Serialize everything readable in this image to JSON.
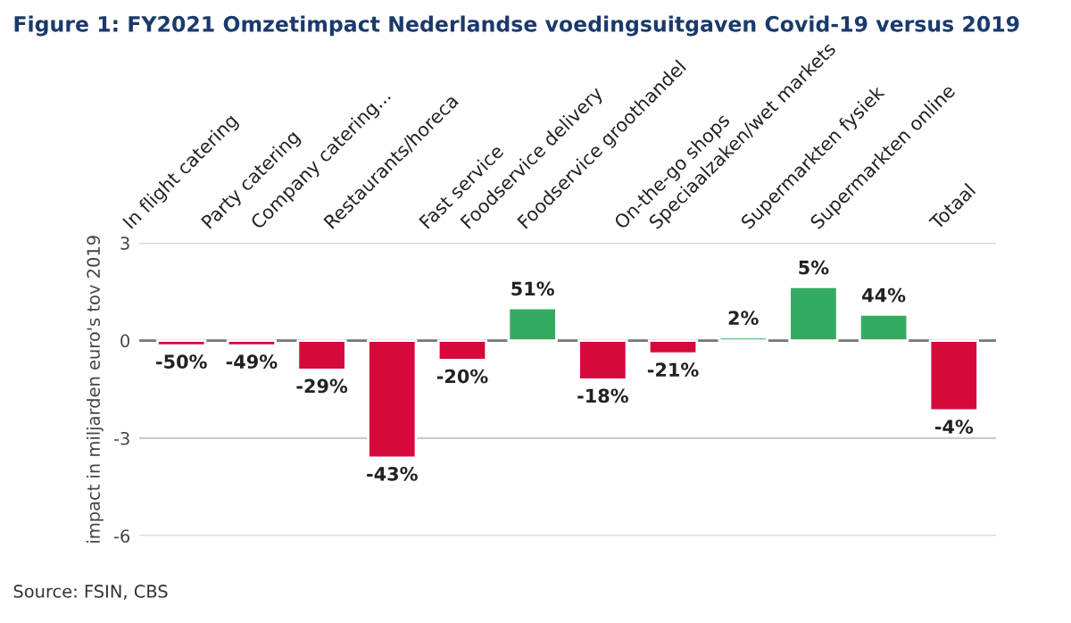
{
  "chart_data": {
    "type": "bar",
    "title": "Figure 1: FY2021 Omzetimpact Nederlandse voedingsuitgaven Covid-19 versus 2019",
    "ylabel": "impact in miljarden euro's tov 2019",
    "annotations": [
      "Source: FSIN, CBS",
      {
        "text": "-50%",
        "x": "In flight catering",
        "y": -0.15
      },
      {
        "text": "-49%",
        "x": "Party catering",
        "y": -0.15
      },
      {
        "text": "-29%",
        "x": "Company catering...",
        "y": -0.9
      },
      {
        "text": "-43%",
        "x": "Restaurants/horeca",
        "y": -3.6
      },
      {
        "text": "-20%",
        "x": "Fast service",
        "y": -0.6
      },
      {
        "text": "51%",
        "x": "Foodservice delivery",
        "y": 1.0
      },
      {
        "text": "-18%",
        "x": "Foodservice groothandel",
        "y": -1.2
      },
      {
        "text": "-21%",
        "x": "On-the-go shops",
        "y": -0.4
      },
      {
        "text": "2%",
        "x": "Speciaalzaken/wet markets",
        "y": 0.1
      },
      {
        "text": "5%",
        "x": "Supermarkten fysiek",
        "y": 1.65
      },
      {
        "text": "44%",
        "x": "Supermarkten online",
        "y": 0.8
      },
      {
        "text": "-4%",
        "x": "Totaal",
        "y": -2.15
      }
    ],
    "categories": [
      "In flight catering",
      "Party catering",
      "Company catering...",
      "Restaurants/horeca",
      "Fast service",
      "Foodservice delivery",
      "Foodservice groothandel",
      "On-the-go shops",
      "Speciaalzaken/wet markets",
      "Supermarkten fysiek",
      "Supermarkten online",
      "Totaal"
    ],
    "values": [
      -0.15,
      -0.15,
      -0.9,
      -3.6,
      -0.6,
      1.0,
      -1.2,
      -0.4,
      0.1,
      1.65,
      0.8,
      -2.15
    ],
    "colors": [
      "#d5093c",
      "#d5093c",
      "#d5093c",
      "#d5093c",
      "#d5093c",
      "#35ab62",
      "#d5093c",
      "#d5093c",
      "#35ab62",
      "#35ab62",
      "#35ab62",
      "#d5093c"
    ],
    "ylim": [
      -6,
      3
    ],
    "yticks": [
      3,
      0,
      -3,
      -6
    ],
    "grid": "y"
  }
}
